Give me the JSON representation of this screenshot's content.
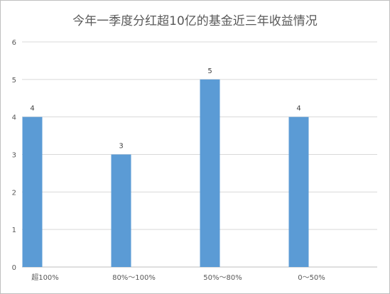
{
  "chart_data": {
    "type": "bar",
    "title": "今年一季度分红超10亿的基金近三年收益情况",
    "xlabel": "",
    "ylabel": "",
    "categories": [
      "超100%",
      "80%～100%",
      "50%～80%",
      "0～50%"
    ],
    "values": [
      4,
      3,
      5,
      4
    ],
    "ylim": [
      0,
      6
    ],
    "yticks": [
      0,
      1,
      2,
      3,
      4,
      5,
      6
    ],
    "grid": true,
    "legend": "none",
    "bar_color": "#5b9bd5"
  }
}
